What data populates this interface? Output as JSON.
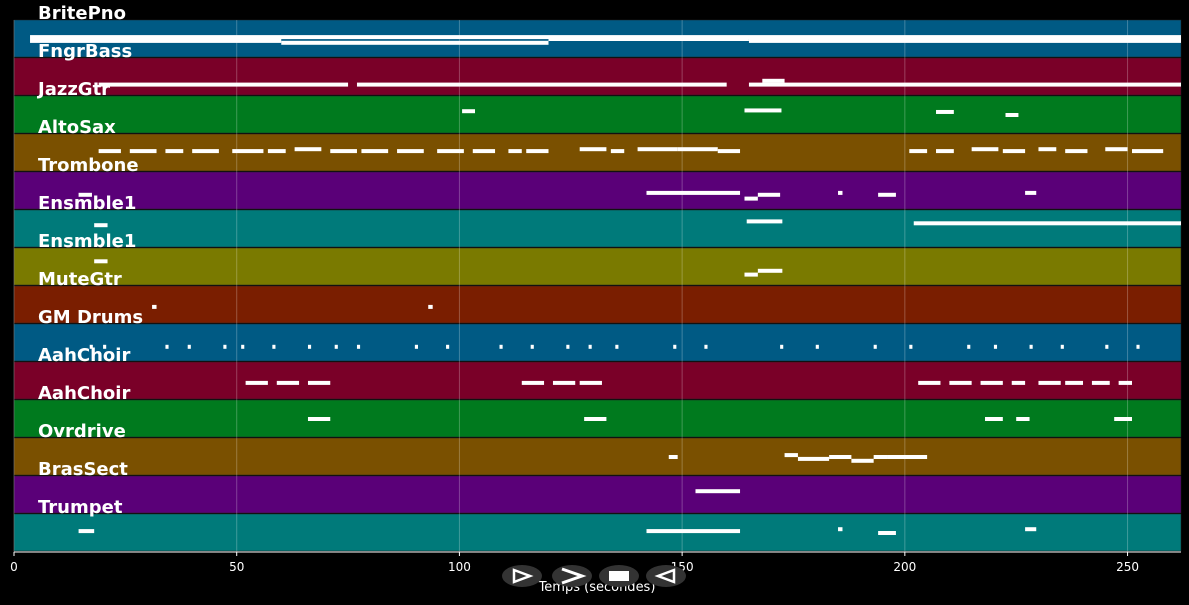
{
  "chart_data": {
    "type": "piano-roll",
    "x_label": "Temps (secondes)",
    "xlim": [
      0,
      262
    ],
    "xticks": [
      0,
      50,
      100,
      150,
      200,
      250
    ],
    "grid": true,
    "tracks": [
      {
        "name": "BritePno",
        "color": "#005a84",
        "notes": [
          [
            3.6,
            60,
            0.55
          ],
          [
            60,
            120,
            0.6
          ],
          [
            120,
            165,
            0.5
          ],
          [
            165,
            262,
            0.55
          ],
          [
            3.6,
            262,
            0.45
          ]
        ]
      },
      {
        "name": "FngrBass",
        "color": "#7a0028",
        "notes": [
          [
            19,
            75,
            0.7
          ],
          [
            77,
            160,
            0.7
          ],
          [
            165,
            262,
            0.7
          ],
          [
            168,
            173,
            0.6
          ]
        ]
      },
      {
        "name": "JazzGtr",
        "color": "#007a1e",
        "notes": [
          [
            100.6,
            103.5,
            0.4
          ],
          [
            164,
            172.3,
            0.38
          ],
          [
            207,
            211,
            0.42
          ],
          [
            222.6,
            225.5,
            0.5
          ]
        ]
      },
      {
        "name": "AltoSax",
        "color": "#7a5000",
        "notes": [
          [
            19,
            24,
            0.45
          ],
          [
            26,
            32,
            0.45
          ],
          [
            34,
            38,
            0.45
          ],
          [
            40,
            46,
            0.45
          ],
          [
            49,
            56,
            0.45
          ],
          [
            57,
            61,
            0.45
          ],
          [
            63,
            69,
            0.4
          ],
          [
            71,
            77,
            0.45
          ],
          [
            78,
            84,
            0.45
          ],
          [
            86,
            92,
            0.45
          ],
          [
            95,
            101,
            0.45
          ],
          [
            103,
            108,
            0.45
          ],
          [
            111,
            114,
            0.45
          ],
          [
            115,
            120,
            0.45
          ],
          [
            127,
            133,
            0.4
          ],
          [
            134,
            137,
            0.45
          ],
          [
            140,
            149,
            0.4
          ],
          [
            149,
            158,
            0.4
          ],
          [
            158,
            163,
            0.45
          ],
          [
            201,
            205,
            0.45
          ],
          [
            207,
            211,
            0.45
          ],
          [
            215,
            221,
            0.4
          ],
          [
            222,
            227,
            0.45
          ],
          [
            230,
            234,
            0.4
          ],
          [
            236,
            241,
            0.45
          ],
          [
            245,
            250,
            0.4
          ],
          [
            251,
            258,
            0.45
          ]
        ]
      },
      {
        "name": "Trombone",
        "color": "#5a0078",
        "notes": [
          [
            14.5,
            17.5,
            0.6
          ],
          [
            142,
            163,
            0.55
          ],
          [
            164,
            167,
            0.7
          ],
          [
            167,
            172,
            0.6
          ],
          [
            185,
            186,
            0.55
          ],
          [
            194,
            198,
            0.6
          ],
          [
            227,
            229.5,
            0.55
          ]
        ]
      },
      {
        "name": "Ensmble1",
        "color": "#007a7a",
        "notes": [
          [
            18,
            21,
            0.4
          ],
          [
            164.5,
            172.5,
            0.3
          ],
          [
            202,
            262,
            0.35
          ]
        ]
      },
      {
        "name": "Ensmble1",
        "color": "#7a7a00",
        "notes": [
          [
            18,
            21,
            0.35
          ],
          [
            164,
            167,
            0.7
          ],
          [
            167,
            172.5,
            0.6
          ]
        ]
      },
      {
        "name": "MuteGtr",
        "color": "#7a1e00",
        "notes": [
          [
            31,
            32,
            0.55
          ],
          [
            93,
            94,
            0.55
          ]
        ]
      },
      {
        "name": "GM Drums",
        "color": "#005a84",
        "notes": [
          [
            17,
            17.7,
            0.6
          ],
          [
            20,
            20.7,
            0.6
          ],
          [
            34,
            34.7,
            0.6
          ],
          [
            39,
            39.7,
            0.6
          ],
          [
            47,
            47.7,
            0.6
          ],
          [
            51,
            51.7,
            0.6
          ],
          [
            58,
            58.7,
            0.6
          ],
          [
            66,
            66.7,
            0.6
          ],
          [
            72,
            72.7,
            0.6
          ],
          [
            77,
            77.7,
            0.6
          ],
          [
            90,
            90.7,
            0.6
          ],
          [
            97,
            97.7,
            0.6
          ],
          [
            109,
            109.7,
            0.6
          ],
          [
            116,
            116.7,
            0.6
          ],
          [
            124,
            124.7,
            0.6
          ],
          [
            129,
            129.7,
            0.6
          ],
          [
            135,
            135.7,
            0.6
          ],
          [
            148,
            148.7,
            0.6
          ],
          [
            155,
            155.7,
            0.6
          ],
          [
            172,
            172.7,
            0.6
          ],
          [
            180,
            180.7,
            0.6
          ],
          [
            193,
            193.7,
            0.6
          ],
          [
            201,
            201.7,
            0.6
          ],
          [
            214,
            214.7,
            0.6
          ],
          [
            220,
            220.7,
            0.6
          ],
          [
            228,
            228.7,
            0.6
          ],
          [
            235,
            235.7,
            0.6
          ],
          [
            245,
            245.7,
            0.6
          ],
          [
            252,
            252.7,
            0.6
          ]
        ]
      },
      {
        "name": "AahChoir",
        "color": "#7a0028",
        "notes": [
          [
            52,
            57,
            0.55
          ],
          [
            59,
            64,
            0.55
          ],
          [
            66,
            71,
            0.55
          ],
          [
            114,
            119,
            0.55
          ],
          [
            121,
            126,
            0.55
          ],
          [
            127,
            132,
            0.55
          ],
          [
            203,
            208,
            0.55
          ],
          [
            210,
            215,
            0.55
          ],
          [
            217,
            222,
            0.55
          ],
          [
            224,
            227,
            0.55
          ],
          [
            230,
            235,
            0.55
          ],
          [
            236,
            240,
            0.55
          ],
          [
            242,
            246,
            0.55
          ],
          [
            248,
            251,
            0.55
          ]
        ]
      },
      {
        "name": "AahChoir",
        "color": "#007a1e",
        "notes": [
          [
            66,
            71,
            0.5
          ],
          [
            128,
            133,
            0.5
          ],
          [
            218,
            222,
            0.5
          ],
          [
            225,
            228,
            0.5
          ],
          [
            247,
            251,
            0.5
          ]
        ]
      },
      {
        "name": "Ovrdrive",
        "color": "#7a5000",
        "notes": [
          [
            147,
            149,
            0.5
          ],
          [
            173,
            176,
            0.45
          ],
          [
            176,
            183,
            0.55
          ],
          [
            183,
            188,
            0.5
          ],
          [
            188,
            193,
            0.6
          ],
          [
            193,
            196,
            0.5
          ],
          [
            196,
            205,
            0.5
          ]
        ]
      },
      {
        "name": "BrasSect",
        "color": "#5a0078",
        "notes": [
          [
            153,
            163,
            0.4
          ]
        ]
      },
      {
        "name": "Trumpet",
        "color": "#007a7a",
        "notes": [
          [
            14.5,
            18,
            0.45
          ],
          [
            142,
            163,
            0.45
          ],
          [
            185,
            186,
            0.4
          ],
          [
            194,
            198,
            0.5
          ],
          [
            227,
            229.5,
            0.4
          ]
        ]
      }
    ]
  }
}
